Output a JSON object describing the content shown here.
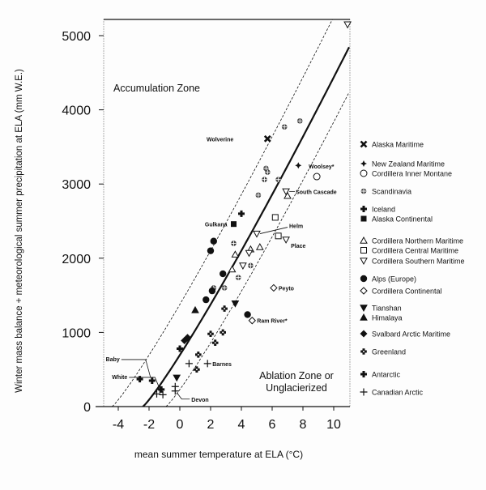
{
  "chart_data": {
    "type": "scatter",
    "xlabel": "mean summer temperature at ELA (°C)",
    "ylabel": "Winter mass balance + meteorological summer precipitation at ELA (mm W.E.)",
    "xlim": [
      -5,
      11
    ],
    "ylim": [
      0,
      5200
    ],
    "xticks": [
      "-4",
      "-2",
      "0",
      "2",
      "4",
      "6",
      "8",
      "10"
    ],
    "xtick_values": [
      -4,
      -2,
      0,
      2,
      4,
      6,
      8,
      10
    ],
    "yticks": [
      "0",
      "1000",
      "2000",
      "3000",
      "4000",
      "5000"
    ],
    "ytick_values": [
      0,
      1000,
      2000,
      3000,
      4000,
      5000
    ],
    "annotations": {
      "accumulation": "Accumulation Zone",
      "ablation1": "Ablation Zone or",
      "ablation2": "Unglacierized"
    },
    "curves": [
      {
        "name": "regression",
        "style": "solid",
        "shift": 2.4
      },
      {
        "name": "upper-bound",
        "style": "dashed",
        "shift": 4.4
      },
      {
        "name": "lower-bound",
        "style": "dashed",
        "shift": 0.9
      }
    ],
    "curve_formula": "P = 258 * (T + shift)^1.13",
    "legend": [
      {
        "type": "alaska-maritime",
        "label": "Alaska Maritime"
      },
      {
        "type": "new-zealand",
        "label": "New Zealand Maritime"
      },
      {
        "type": "cordillera-inner",
        "label": "Cordillera Inner Montane"
      },
      {
        "type": "scandinavia",
        "label": "Scandinavia"
      },
      {
        "type": "iceland",
        "label": "Iceland"
      },
      {
        "type": "alaska-continental",
        "label": "Alaska Continental"
      },
      {
        "type": "cordillera-northern",
        "label": "Cordillera Northern Maritime"
      },
      {
        "type": "cordillera-central",
        "label": "Cordillera Central Maritime"
      },
      {
        "type": "cordillera-southern",
        "label": "Cordillera Southern Maritime"
      },
      {
        "type": "alps",
        "label": "Alps (Europe)"
      },
      {
        "type": "cordillera-continental",
        "label": "Cordillera Continental"
      },
      {
        "type": "tianshan",
        "label": "Tianshan"
      },
      {
        "type": "himalaya",
        "label": "Himalaya"
      },
      {
        "type": "svalbard",
        "label": "Svalbard Arctic Maritime"
      },
      {
        "type": "greenland",
        "label": "Greenland"
      },
      {
        "type": "antarctic",
        "label": "Antarctic"
      },
      {
        "type": "canadian-arctic",
        "label": "Canadian Arctic"
      }
    ],
    "points": [
      {
        "type": "cordillera-southern",
        "x": 10.9,
        "y": 5150
      },
      {
        "type": "scandinavia",
        "x": 6.8,
        "y": 3770
      },
      {
        "type": "scandinavia",
        "x": 7.8,
        "y": 3850
      },
      {
        "type": "scandinavia",
        "x": 5.6,
        "y": 3210
      },
      {
        "type": "scandinavia",
        "x": 5.7,
        "y": 3160
      },
      {
        "type": "scandinavia",
        "x": 5.5,
        "y": 3060
      },
      {
        "type": "scandinavia",
        "x": 6.4,
        "y": 3060
      },
      {
        "type": "scandinavia",
        "x": 5.1,
        "y": 2850
      },
      {
        "type": "scandinavia",
        "x": 3.5,
        "y": 2200
      },
      {
        "type": "scandinavia",
        "x": 2.9,
        "y": 1600
      },
      {
        "type": "scandinavia",
        "x": 3.8,
        "y": 1740
      },
      {
        "type": "scandinavia",
        "x": 4.6,
        "y": 1900
      },
      {
        "type": "scandinavia",
        "x": 2.2,
        "y": 1600
      },
      {
        "type": "alaska-maritime",
        "x": 5.7,
        "y": 3610,
        "label": "Wolverine"
      },
      {
        "type": "new-zealand",
        "x": 7.7,
        "y": 3250
      },
      {
        "type": "iceland",
        "x": 4.0,
        "y": 2600
      },
      {
        "type": "cordillera-inner",
        "x": 8.9,
        "y": 3100,
        "label": "Woolsey*"
      },
      {
        "type": "cordillera-southern",
        "x": 6.9,
        "y": 2900,
        "label": "South Cascade"
      },
      {
        "type": "cordillera-northern",
        "x": 7.0,
        "y": 2840
      },
      {
        "type": "cordillera-central",
        "x": 6.2,
        "y": 2550
      },
      {
        "type": "cordillera-central",
        "x": 6.4,
        "y": 2300
      },
      {
        "type": "alaska-continental",
        "x": 3.5,
        "y": 2460,
        "label": "Gulkana"
      },
      {
        "type": "cordillera-southern",
        "x": 5.0,
        "y": 2330,
        "label": "Helm"
      },
      {
        "type": "cordillera-southern",
        "x": 6.9,
        "y": 2250,
        "label": "Place"
      },
      {
        "type": "alps",
        "x": 2.2,
        "y": 2230
      },
      {
        "type": "alps",
        "x": 2.0,
        "y": 2100
      },
      {
        "type": "alps",
        "x": 2.8,
        "y": 1790
      },
      {
        "type": "alps",
        "x": 1.7,
        "y": 1440
      },
      {
        "type": "alps",
        "x": 2.1,
        "y": 1560
      },
      {
        "type": "alps",
        "x": 4.4,
        "y": 1240
      },
      {
        "type": "cordillera-northern",
        "x": 3.6,
        "y": 2050
      },
      {
        "type": "cordillera-northern",
        "x": 5.2,
        "y": 2150
      },
      {
        "type": "cordillera-northern",
        "x": 3.4,
        "y": 1850
      },
      {
        "type": "cordillera-northern",
        "x": 4.6,
        "y": 2120
      },
      {
        "type": "cordillera-southern",
        "x": 4.5,
        "y": 2070
      },
      {
        "type": "cordillera-southern",
        "x": 4.1,
        "y": 1900
      },
      {
        "type": "cordillera-continental",
        "x": 6.1,
        "y": 1600,
        "label": "Peyto"
      },
      {
        "type": "cordillera-continental",
        "x": 4.7,
        "y": 1160,
        "label": "Ram River*"
      },
      {
        "type": "tianshan",
        "x": 3.6,
        "y": 1390
      },
      {
        "type": "tianshan",
        "x": -0.2,
        "y": 390
      },
      {
        "type": "himalaya",
        "x": 1.0,
        "y": 1300
      },
      {
        "type": "svalbard",
        "x": 0.5,
        "y": 930
      },
      {
        "type": "svalbard",
        "x": 0.3,
        "y": 890
      },
      {
        "type": "greenland",
        "x": 2.8,
        "y": 1000
      },
      {
        "type": "greenland",
        "x": 2.0,
        "y": 980
      },
      {
        "type": "greenland",
        "x": 2.9,
        "y": 1320
      },
      {
        "type": "greenland",
        "x": 1.2,
        "y": 700
      },
      {
        "type": "greenland",
        "x": 2.3,
        "y": 860
      },
      {
        "type": "greenland",
        "x": 1.1,
        "y": 500
      },
      {
        "type": "canadian-arctic",
        "x": 0.6,
        "y": 580
      },
      {
        "type": "canadian-arctic",
        "x": 1.8,
        "y": 580,
        "label": "Barnes"
      },
      {
        "type": "canadian-arctic",
        "x": -0.3,
        "y": 270
      },
      {
        "type": "canadian-arctic",
        "x": -0.3,
        "y": 210,
        "label": "Devon"
      },
      {
        "type": "canadian-arctic",
        "x": -1.5,
        "y": 170
      },
      {
        "type": "canadian-arctic",
        "x": -1.1,
        "y": 160
      },
      {
        "type": "canadian-arctic",
        "x": -1.3,
        "y": 230,
        "label": "White"
      },
      {
        "type": "antarctic",
        "x": -2.6,
        "y": 370
      },
      {
        "type": "antarctic",
        "x": -1.8,
        "y": 350,
        "label": "Baby"
      },
      {
        "type": "antarctic",
        "x": 0.0,
        "y": 780
      },
      {
        "type": "antarctic",
        "x": -1.2,
        "y": 230
      }
    ]
  }
}
